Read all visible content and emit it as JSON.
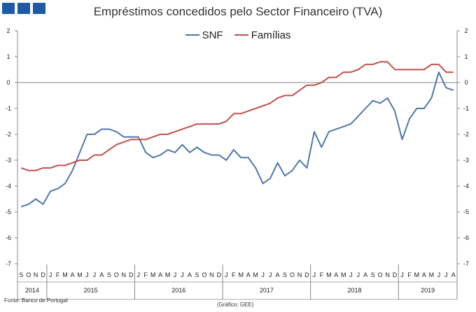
{
  "chart_data": {
    "type": "line",
    "title": "Empréstimos concedidos pelo Sector Financeiro (TVA)",
    "ylim": [
      -7,
      2
    ],
    "yticks": [
      2,
      1,
      0,
      -1,
      -2,
      -3,
      -4,
      -5,
      -6,
      -7
    ],
    "month_labels": [
      "S",
      "O",
      "N",
      "D",
      "J",
      "F",
      "M",
      "A",
      "M",
      "J",
      "J",
      "A",
      "S",
      "O",
      "N",
      "D",
      "J",
      "F",
      "M",
      "A",
      "M",
      "J",
      "J",
      "A",
      "S",
      "O",
      "N",
      "D",
      "J",
      "F",
      "M",
      "A",
      "M",
      "J",
      "J",
      "A",
      "S",
      "O",
      "N",
      "D",
      "J",
      "F",
      "M",
      "A",
      "M",
      "J",
      "J",
      "A",
      "S",
      "O",
      "N",
      "D",
      "J",
      "F",
      "M",
      "A",
      "M",
      "J",
      "J",
      "A"
    ],
    "years": [
      {
        "label": "2014",
        "start": 0,
        "count": 4
      },
      {
        "label": "2015",
        "start": 4,
        "count": 12
      },
      {
        "label": "2016",
        "start": 16,
        "count": 12
      },
      {
        "label": "2017",
        "start": 28,
        "count": 12
      },
      {
        "label": "2018",
        "start": 40,
        "count": 12
      },
      {
        "label": "2019",
        "start": 52,
        "count": 8
      }
    ],
    "series": [
      {
        "name": "SNF",
        "color": "#4f78a8",
        "values": [
          -4.8,
          -4.7,
          -4.5,
          -4.7,
          -4.2,
          -4.1,
          -3.9,
          -3.4,
          -2.7,
          -2.0,
          -2.0,
          -1.8,
          -1.8,
          -1.9,
          -2.1,
          -2.1,
          -2.1,
          -2.7,
          -2.9,
          -2.8,
          -2.6,
          -2.7,
          -2.4,
          -2.7,
          -2.5,
          -2.7,
          -2.8,
          -2.8,
          -3.0,
          -2.6,
          -2.9,
          -2.9,
          -3.3,
          -3.9,
          -3.7,
          -3.1,
          -3.6,
          -3.4,
          -3.0,
          -3.3,
          -1.9,
          -2.5,
          -1.9,
          -1.8,
          -1.7,
          -1.6,
          -1.3,
          -1.0,
          -0.7,
          -0.8,
          -0.6,
          -1.1,
          -2.2,
          -1.4,
          -1.0,
          -1.0,
          -0.6,
          0.4,
          -0.2,
          -0.3
        ]
      },
      {
        "name": "Famílias",
        "color": "#c0504d",
        "values": [
          -3.3,
          -3.4,
          -3.4,
          -3.3,
          -3.3,
          -3.2,
          -3.2,
          -3.1,
          -3.0,
          -3.0,
          -2.8,
          -2.8,
          -2.6,
          -2.4,
          -2.3,
          -2.2,
          -2.2,
          -2.2,
          -2.1,
          -2.0,
          -2.0,
          -1.9,
          -1.8,
          -1.7,
          -1.6,
          -1.6,
          -1.6,
          -1.6,
          -1.5,
          -1.2,
          -1.2,
          -1.1,
          -1.0,
          -0.9,
          -0.8,
          -0.6,
          -0.5,
          -0.5,
          -0.3,
          -0.1,
          -0.1,
          0.0,
          0.2,
          0.2,
          0.4,
          0.4,
          0.5,
          0.7,
          0.7,
          0.8,
          0.8,
          0.5,
          0.5,
          0.5,
          0.5,
          0.5,
          0.7,
          0.7,
          0.4,
          0.4
        ]
      }
    ],
    "source": "Fonte:  Banco de Portugal",
    "credit": "(Gráfico: GEE)"
  }
}
